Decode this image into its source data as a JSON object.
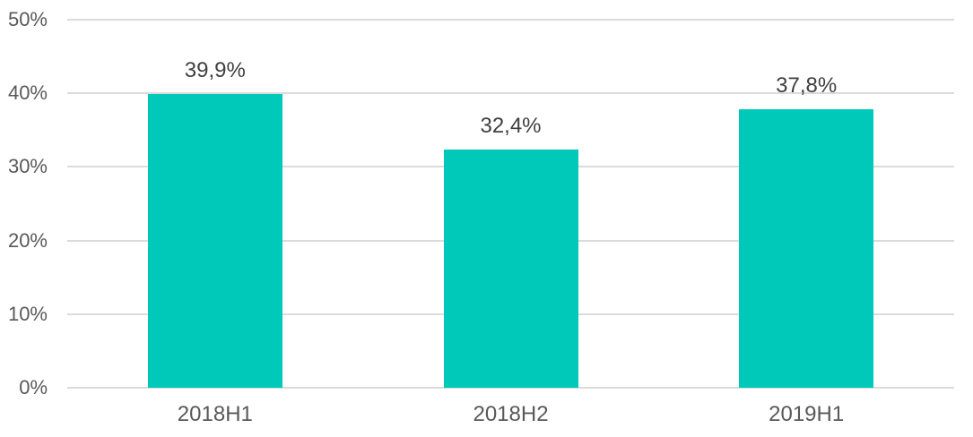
{
  "chart_data": {
    "type": "bar",
    "categories": [
      "2018H1",
      "2018H2",
      "2019H1"
    ],
    "values": [
      39.9,
      32.4,
      37.8
    ],
    "value_labels": [
      "39,9%",
      "32,4%",
      "37,8%"
    ],
    "y_ticks": [
      "50%",
      "40%",
      "30%",
      "20%",
      "10%",
      "0%"
    ],
    "y_tick_values": [
      50,
      40,
      30,
      20,
      10,
      0
    ],
    "ylim": [
      0,
      50
    ],
    "title": "",
    "xlabel": "",
    "ylabel": "",
    "grid": true,
    "legend": "none",
    "colors": {
      "bar_fill": "#00C9BA",
      "gridline": "#DBDBDB",
      "axis_label": "#595959",
      "data_label": "#404040",
      "background": "#FFFFFF"
    }
  }
}
